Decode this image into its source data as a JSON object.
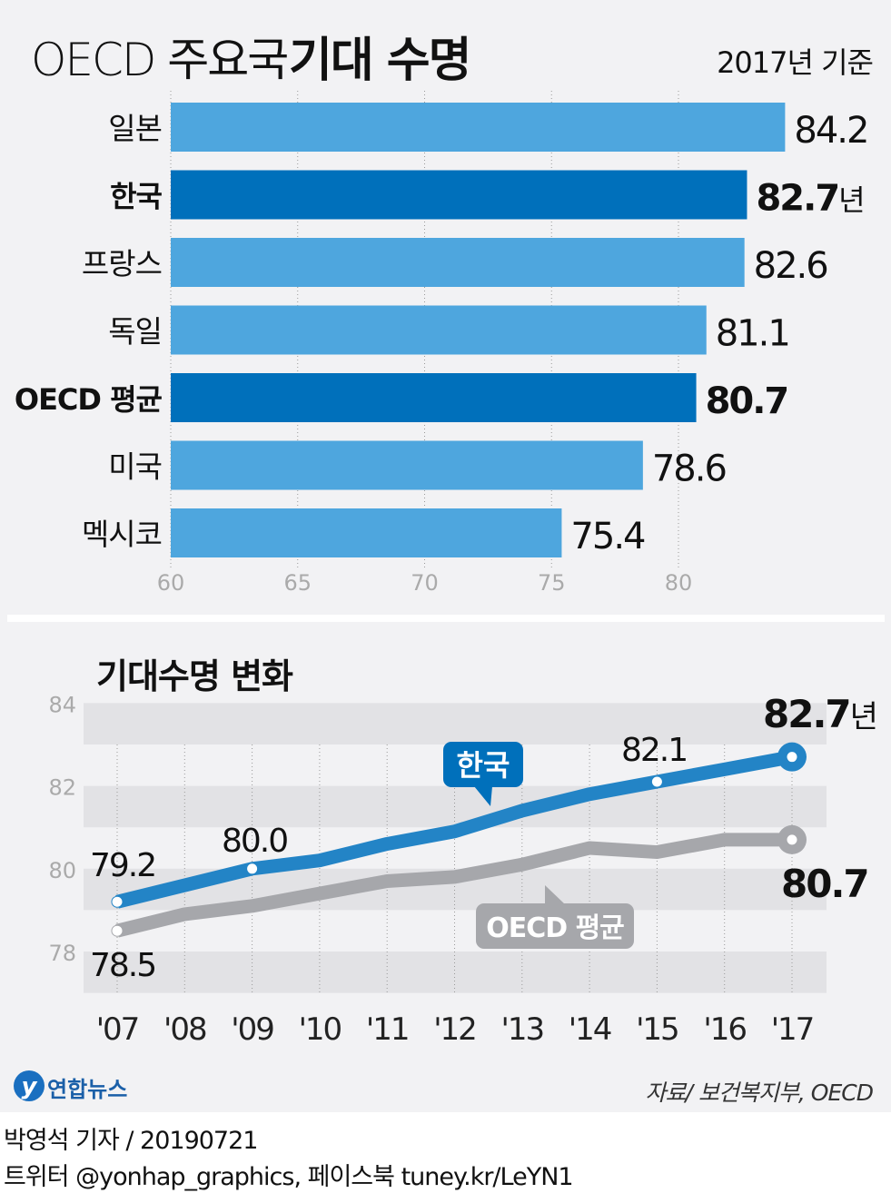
{
  "title_light": "OECD 주요국",
  "title_bold": "기대 수명",
  "subtitle": "2017년 기준",
  "colors": {
    "bar": "#4ea6de",
    "bar_highlight": "#0070bb",
    "korea_line": "#2384c6",
    "oecd_line": "#a6a7ab",
    "background": "#f2f2f4"
  },
  "chart_data": [
    {
      "type": "bar",
      "orientation": "horizontal",
      "categories": [
        "일본",
        "한국",
        "프랑스",
        "독일",
        "OECD 평균",
        "미국",
        "멕시코"
      ],
      "values": [
        84.2,
        82.7,
        82.6,
        81.1,
        80.7,
        78.6,
        75.4
      ],
      "value_labels": [
        "84.2",
        "82.7",
        "82.6",
        "81.1",
        "80.7",
        "78.6",
        "75.4"
      ],
      "highlight": [
        false,
        true,
        false,
        false,
        true,
        false,
        false
      ],
      "unit_label": "년",
      "xlim": [
        60,
        85
      ],
      "xticks": [
        "60",
        "65",
        "70",
        "75",
        "80"
      ],
      "grid": "vertical dotted"
    },
    {
      "type": "line",
      "title": "기대수명 변화",
      "x": [
        "'07",
        "'08",
        "'09",
        "'10",
        "'11",
        "'12",
        "'13",
        "'14",
        "'15",
        "'16",
        "'17"
      ],
      "ylim": [
        77,
        84
      ],
      "yticks": [
        "84",
        "82",
        "80",
        "78"
      ],
      "series": [
        {
          "name": "한국",
          "values": [
            79.2,
            79.6,
            80.0,
            80.2,
            80.6,
            80.9,
            81.4,
            81.8,
            82.1,
            82.4,
            82.7
          ]
        },
        {
          "name": "OECD 평균",
          "values": [
            78.5,
            78.9,
            79.1,
            79.4,
            79.7,
            79.8,
            80.1,
            80.5,
            80.4,
            80.7,
            80.7
          ]
        }
      ],
      "labels": {
        "k07": "79.2",
        "k09": "80.0",
        "k15": "82.1",
        "k17": "82.7",
        "k17_unit": "년",
        "o07": "78.5",
        "o17": "80.7"
      }
    }
  ],
  "logo_text": "연합뉴스",
  "source": "자료/ 보건복지부, OECD",
  "credit_line1": "박영석 기자 / 20190721",
  "credit_line2": "트위터 @yonhap_graphics, 페이스북 tuney.kr/LeYN1"
}
